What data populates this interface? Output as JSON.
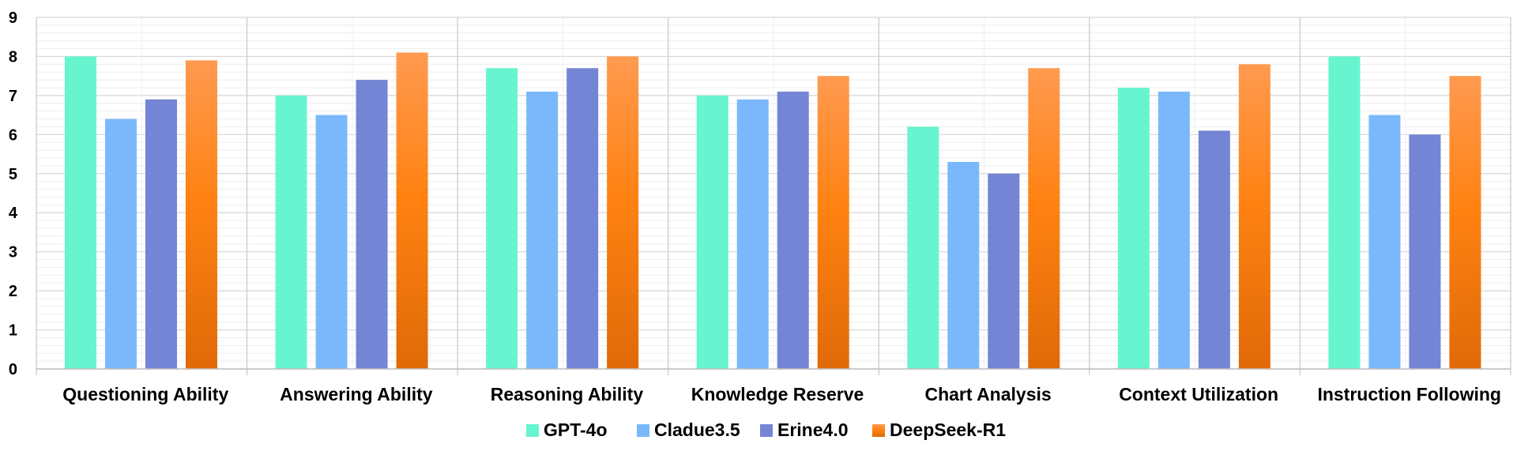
{
  "chart_data": {
    "type": "bar",
    "categories": [
      "Questioning Ability",
      "Answering Ability",
      "Reasoning Ability",
      "Knowledge Reserve",
      "Chart Analysis",
      "Context Utilization",
      "Instruction Following"
    ],
    "series": [
      {
        "name": "GPT-4o",
        "color": "#66f5cf",
        "values": [
          8.0,
          7.0,
          7.7,
          7.0,
          6.2,
          7.2,
          8.0
        ]
      },
      {
        "name": "Cladue3.5",
        "color": "#7ab8fb",
        "values": [
          6.4,
          6.5,
          7.1,
          6.9,
          5.3,
          7.1,
          6.5
        ]
      },
      {
        "name": "Erine4.0",
        "color": "#7485d5",
        "values": [
          6.9,
          7.4,
          7.7,
          7.1,
          5.0,
          6.1,
          6.0
        ]
      },
      {
        "name": "DeepSeek-R1",
        "color": "#f57c1c",
        "values": [
          7.9,
          8.1,
          8.0,
          7.5,
          7.7,
          7.8,
          7.5
        ]
      }
    ],
    "y_ticks": [
      "0",
      "1",
      "2",
      "3",
      "4",
      "5",
      "6",
      "7",
      "8",
      "9"
    ],
    "ylim": [
      0,
      9
    ],
    "grid": true,
    "legend_position": "bottom",
    "title": "",
    "xlabel": "",
    "ylabel": ""
  }
}
